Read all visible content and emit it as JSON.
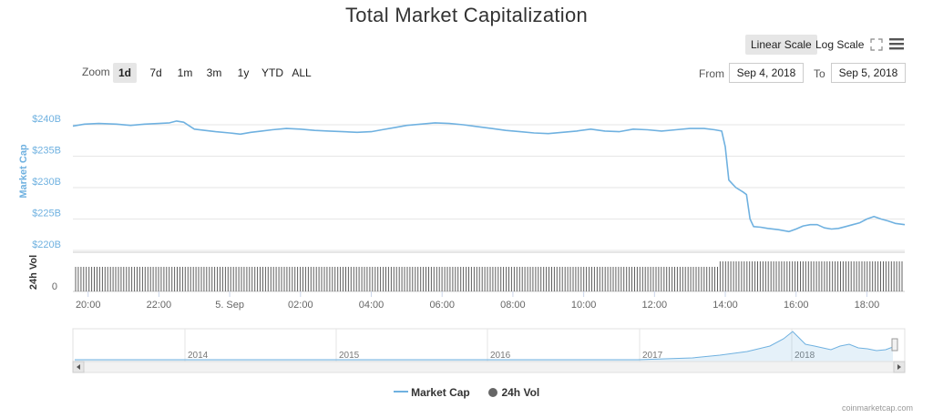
{
  "chart_data": {
    "type": "line",
    "title": "Total Market Capitalization",
    "ylabel": "Market Cap",
    "ylabel_volume": "24h Vol",
    "ylim": [
      220,
      240
    ],
    "y_ticks": [
      "$240B",
      "$235B",
      "$230B",
      "$225B",
      "$220B"
    ],
    "y_tick_values": [
      240,
      235,
      230,
      225,
      220
    ],
    "volume_tick": "0",
    "x_range_hours": [
      19.57,
      43.07
    ],
    "x_ticks": [
      {
        "t": 20,
        "label": "20:00"
      },
      {
        "t": 22,
        "label": "22:00"
      },
      {
        "t": 24,
        "label": "5. Sep"
      },
      {
        "t": 26,
        "label": "02:00"
      },
      {
        "t": 28,
        "label": "04:00"
      },
      {
        "t": 30,
        "label": "06:00"
      },
      {
        "t": 32,
        "label": "08:00"
      },
      {
        "t": 34,
        "label": "10:00"
      },
      {
        "t": 36,
        "label": "12:00"
      },
      {
        "t": 38,
        "label": "14:00"
      },
      {
        "t": 40,
        "label": "16:00"
      },
      {
        "t": 42,
        "label": "18:00"
      }
    ],
    "series": [
      {
        "name": "Market Cap",
        "color": "#6fb1e0",
        "x": [
          19.57,
          19.9,
          20.3,
          20.8,
          21.2,
          21.6,
          22.0,
          22.3,
          22.5,
          22.7,
          23.0,
          23.3,
          23.6,
          24.0,
          24.3,
          24.6,
          24.9,
          25.2,
          25.6,
          26.0,
          26.4,
          26.8,
          27.2,
          27.6,
          28.0,
          28.3,
          28.7,
          29.0,
          29.4,
          29.8,
          30.2,
          30.6,
          31.0,
          31.4,
          31.8,
          32.2,
          32.6,
          33.0,
          33.4,
          33.8,
          34.2,
          34.6,
          35.0,
          35.4,
          35.8,
          36.2,
          36.6,
          37.0,
          37.4,
          37.7,
          37.9,
          38.0,
          38.1,
          38.2,
          38.3,
          38.5,
          38.6,
          38.7,
          38.8,
          39.0,
          39.2,
          39.5,
          39.8,
          40.0,
          40.2,
          40.4,
          40.6,
          40.8,
          41.0,
          41.2,
          41.4,
          41.6,
          41.8,
          42.0,
          42.2,
          42.4,
          42.6,
          42.8,
          43.07
        ],
        "values": [
          239.8,
          240.1,
          240.2,
          240.1,
          239.9,
          240.1,
          240.2,
          240.3,
          240.6,
          240.4,
          239.3,
          239.1,
          238.9,
          238.7,
          238.5,
          238.8,
          239.0,
          239.2,
          239.4,
          239.3,
          239.1,
          239.0,
          238.9,
          238.8,
          238.9,
          239.2,
          239.6,
          239.9,
          240.1,
          240.3,
          240.2,
          240.0,
          239.7,
          239.4,
          239.1,
          238.9,
          238.7,
          238.6,
          238.8,
          239.0,
          239.3,
          239.0,
          238.9,
          239.3,
          239.2,
          239.0,
          239.2,
          239.4,
          239.4,
          239.2,
          239.0,
          236.5,
          231.2,
          230.6,
          230.0,
          229.3,
          228.9,
          225.0,
          223.8,
          223.7,
          223.5,
          223.3,
          223.0,
          223.4,
          223.9,
          224.1,
          224.1,
          223.6,
          223.4,
          223.5,
          223.8,
          224.1,
          224.4,
          225.0,
          225.4,
          225.0,
          224.7,
          224.3,
          224.1
        ]
      }
    ],
    "volume_series": {
      "name": "24h Vol",
      "color": "#666666"
    },
    "navigator": {
      "year_labels": [
        "2014",
        "2015",
        "2016",
        "2017",
        "2018"
      ]
    },
    "legend_placement": "bottom-center",
    "grid": true
  },
  "controls": {
    "linear_scale": "Linear Scale",
    "log_scale": "Log Scale",
    "zoom_label": "Zoom",
    "zoom_options": [
      "1d",
      "7d",
      "1m",
      "3m",
      "1y",
      "YTD",
      "ALL"
    ],
    "from_label": "From",
    "to_label": "To",
    "from_value": "Sep 4, 2018",
    "to_value": "Sep 5, 2018"
  },
  "legend": {
    "market_cap": "Market Cap",
    "volume": "24h Vol"
  },
  "credits": "coinmarketcap.com",
  "icons": {
    "fullscreen": "expand-icon",
    "menu": "hamburger-menu-icon"
  }
}
